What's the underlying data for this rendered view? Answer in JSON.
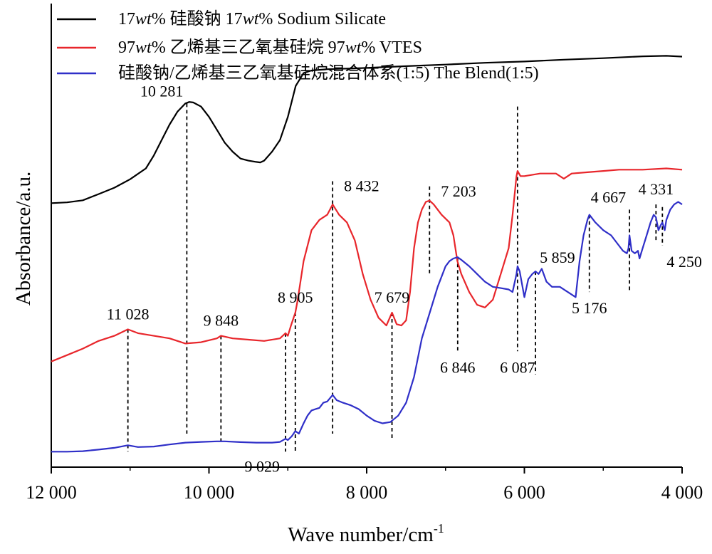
{
  "chart_data": {
    "type": "line",
    "xlabel": "Wave number/cm",
    "xlabel_sup": "-1",
    "ylabel": "Absorbance/a.u.",
    "xlim": [
      12000,
      4000
    ],
    "x_reversed": true,
    "x_ticks": [
      {
        "value": 12000,
        "label": "12 000"
      },
      {
        "value": 10000,
        "label": "10 000"
      },
      {
        "value": 8000,
        "label": "8 000"
      },
      {
        "value": 6000,
        "label": "6 000"
      },
      {
        "value": 4000,
        "label": "4 000"
      }
    ],
    "y_ticks_shown": false,
    "grid": false,
    "legend_position": "top",
    "series": [
      {
        "name": "17wt% 硅酸钠 17wt% Sodium Silicate",
        "legend_parts": [
          {
            "text": "17",
            "italic": false
          },
          {
            "text": "wt",
            "italic": true
          },
          {
            "text": "% 硅酸钠 17",
            "italic": false
          },
          {
            "text": "wt",
            "italic": true
          },
          {
            "text": "% Sodium Silicate",
            "italic": false
          }
        ],
        "color": "#000000",
        "x": [
          12000,
          11800,
          11600,
          11400,
          11200,
          11000,
          10800,
          10700,
          10600,
          10500,
          10400,
          10300,
          10250,
          10200,
          10100,
          10000,
          9900,
          9800,
          9700,
          9600,
          9500,
          9400,
          9350,
          9300,
          9200,
          9100,
          9000,
          8900,
          8800,
          8700,
          8500,
          8000,
          7500,
          7000,
          6500,
          6000,
          5500,
          5000,
          4500,
          4200,
          4000
        ],
        "y": [
          0.225,
          0.228,
          0.236,
          0.26,
          0.285,
          0.318,
          0.36,
          0.41,
          0.47,
          0.53,
          0.58,
          0.612,
          0.618,
          0.616,
          0.6,
          0.56,
          0.51,
          0.46,
          0.425,
          0.398,
          0.39,
          0.385,
          0.383,
          0.39,
          0.425,
          0.47,
          0.56,
          0.68,
          0.73,
          0.74,
          0.745,
          0.75,
          0.757,
          0.763,
          0.77,
          0.775,
          0.782,
          0.788,
          0.795,
          0.797,
          0.794
        ]
      },
      {
        "name": "97wt% 乙烯基三乙氧基硅烷 97wt% VTES",
        "legend_parts": [
          {
            "text": "97",
            "italic": false
          },
          {
            "text": "wt",
            "italic": true
          },
          {
            "text": "% 乙烯基三乙氧基硅烷 97",
            "italic": false
          },
          {
            "text": "wt",
            "italic": true
          },
          {
            "text": "% VTES",
            "italic": false
          }
        ],
        "color": "#e8262b",
        "x": [
          12000,
          11800,
          11600,
          11400,
          11200,
          11028,
          10900,
          10700,
          10500,
          10300,
          10100,
          9900,
          9848,
          9700,
          9500,
          9300,
          9100,
          9029,
          9000,
          8960,
          8905,
          8880,
          8850,
          8800,
          8700,
          8600,
          8500,
          8432,
          8350,
          8250,
          8150,
          8050,
          7950,
          7850,
          7750,
          7679,
          7620,
          7560,
          7500,
          7450,
          7400,
          7350,
          7300,
          7250,
          7203,
          7150,
          7050,
          6950,
          6900,
          6850,
          6800,
          6700,
          6600,
          6500,
          6400,
          6300,
          6200,
          6150,
          6100,
          6087,
          6050,
          6000,
          5800,
          5600,
          5500,
          5450,
          5400,
          5200,
          5000,
          4800,
          4500,
          4200,
          4000
        ],
        "y": [
          -0.39,
          -0.365,
          -0.34,
          -0.31,
          -0.29,
          -0.265,
          -0.28,
          -0.29,
          -0.3,
          -0.32,
          -0.315,
          -0.3,
          -0.29,
          -0.3,
          -0.305,
          -0.31,
          -0.3,
          -0.28,
          -0.29,
          -0.25,
          -0.2,
          -0.16,
          -0.1,
          0.0,
          0.12,
          0.16,
          0.18,
          0.22,
          0.18,
          0.15,
          0.08,
          -0.05,
          -0.15,
          -0.22,
          -0.25,
          -0.2,
          -0.245,
          -0.25,
          -0.23,
          -0.12,
          0.05,
          0.15,
          0.2,
          0.23,
          0.235,
          0.22,
          0.18,
          0.15,
          0.1,
          0.0,
          -0.05,
          -0.12,
          -0.17,
          -0.18,
          -0.15,
          -0.05,
          0.05,
          0.18,
          0.33,
          0.35,
          0.33,
          0.33,
          0.34,
          0.34,
          0.32,
          0.33,
          0.34,
          0.345,
          0.35,
          0.355,
          0.355,
          0.36,
          0.355
        ]
      },
      {
        "name": "硅酸钠/乙烯基三乙氧基硅烷混合体系(1:5) The Blend(1:5)",
        "legend_parts": [
          {
            "text": "硅酸钠/乙烯基三乙氧基硅烷混合体系(1:5) The Blend(1:5)",
            "italic": false
          }
        ],
        "color": "#2f2fc8",
        "x": [
          12000,
          11800,
          11600,
          11400,
          11200,
          11028,
          10900,
          10700,
          10500,
          10300,
          10100,
          9900,
          9800,
          9600,
          9400,
          9200,
          9100,
          9029,
          9000,
          8950,
          8905,
          8860,
          8800,
          8750,
          8700,
          8650,
          8600,
          8550,
          8500,
          8432,
          8380,
          8300,
          8200,
          8100,
          8000,
          7900,
          7800,
          7700,
          7600,
          7500,
          7400,
          7300,
          7200,
          7100,
          7000,
          6950,
          6900,
          6846,
          6800,
          6700,
          6600,
          6500,
          6400,
          6300,
          6200,
          6150,
          6100,
          6087,
          6060,
          6000,
          5950,
          5900,
          5859,
          5820,
          5780,
          5720,
          5650,
          5550,
          5450,
          5350,
          5300,
          5250,
          5200,
          5176,
          5100,
          5000,
          4900,
          4800,
          4750,
          4700,
          4680,
          4667,
          4640,
          4600,
          4560,
          4540,
          4500,
          4450,
          4400,
          4360,
          4331,
          4300,
          4270,
          4250,
          4220,
          4200,
          4150,
          4100,
          4050,
          4000
        ],
        "y": [
          -0.74,
          -0.74,
          -0.738,
          -0.732,
          -0.725,
          -0.715,
          -0.722,
          -0.72,
          -0.712,
          -0.705,
          -0.702,
          -0.7,
          -0.7,
          -0.703,
          -0.705,
          -0.705,
          -0.702,
          -0.69,
          -0.695,
          -0.68,
          -0.66,
          -0.67,
          -0.63,
          -0.6,
          -0.58,
          -0.575,
          -0.57,
          -0.55,
          -0.545,
          -0.52,
          -0.54,
          -0.55,
          -0.56,
          -0.575,
          -0.6,
          -0.62,
          -0.63,
          -0.625,
          -0.6,
          -0.55,
          -0.45,
          -0.3,
          -0.2,
          -0.1,
          -0.02,
          0.0,
          0.01,
          0.015,
          0.005,
          -0.02,
          -0.05,
          -0.08,
          -0.1,
          -0.105,
          -0.11,
          -0.12,
          -0.05,
          -0.02,
          -0.04,
          -0.14,
          -0.07,
          -0.05,
          -0.04,
          -0.05,
          -0.03,
          -0.08,
          -0.1,
          -0.1,
          -0.12,
          -0.14,
          0.0,
          0.1,
          0.16,
          0.18,
          0.15,
          0.12,
          0.1,
          0.06,
          0.04,
          0.03,
          0.05,
          0.1,
          0.04,
          0.03,
          0.04,
          0.01,
          0.05,
          0.1,
          0.15,
          0.18,
          0.17,
          0.12,
          0.14,
          0.15,
          0.12,
          0.16,
          0.2,
          0.22,
          0.23,
          0.22
        ]
      }
    ],
    "peak_markers": [
      {
        "label": "10 281",
        "x": 10281,
        "y_top": 0.612,
        "y_bottom": -0.67,
        "label_pos": "above-left"
      },
      {
        "label": "11 028",
        "x": 11028,
        "y_top": -0.265,
        "y_bottom": -0.74,
        "label_pos": "above"
      },
      {
        "label": "9 848",
        "x": 9848,
        "y_top": -0.29,
        "y_bottom": -0.71,
        "label_pos": "above"
      },
      {
        "label": "9 029",
        "x": 9029,
        "y_top": -0.28,
        "y_bottom": -0.74,
        "label_pos": "below-left"
      },
      {
        "label": "8 905",
        "x": 8905,
        "y_top": -0.2,
        "y_bottom": -0.74,
        "label_pos": "above"
      },
      {
        "label": "8 432",
        "x": 8432,
        "y_top": 0.31,
        "y_bottom": -0.67,
        "label_pos": "right"
      },
      {
        "label": "7 679",
        "x": 7679,
        "y_top": -0.2,
        "y_bottom": -0.69,
        "label_pos": "above"
      },
      {
        "label": "7 203",
        "x": 7203,
        "y_top": 0.29,
        "y_bottom": -0.05,
        "label_pos": "right"
      },
      {
        "label": "6 846",
        "x": 6846,
        "y_top": 0.015,
        "y_bottom": -0.35,
        "label_pos": "below"
      },
      {
        "label": "6 087",
        "x": 6087,
        "y_top": 0.6,
        "y_bottom": -0.35,
        "label_pos": "below"
      },
      {
        "label": "5 859",
        "x": 5859,
        "y_top": -0.04,
        "y_bottom": -0.44,
        "label_pos": "above-right"
      },
      {
        "label": "5 176",
        "x": 5176,
        "y_top": 0.18,
        "y_bottom": -0.12,
        "label_pos": "below"
      },
      {
        "label": "4 667",
        "x": 4667,
        "y_top": 0.2,
        "y_bottom": -0.12,
        "label_pos": "above-left"
      },
      {
        "label": "4 331",
        "x": 4331,
        "y_top": 0.22,
        "y_bottom": 0.08,
        "label_pos": "above"
      },
      {
        "label": "4 250",
        "x": 4250,
        "y_top": 0.21,
        "y_bottom": 0.06,
        "label_pos": "below-right"
      }
    ]
  }
}
